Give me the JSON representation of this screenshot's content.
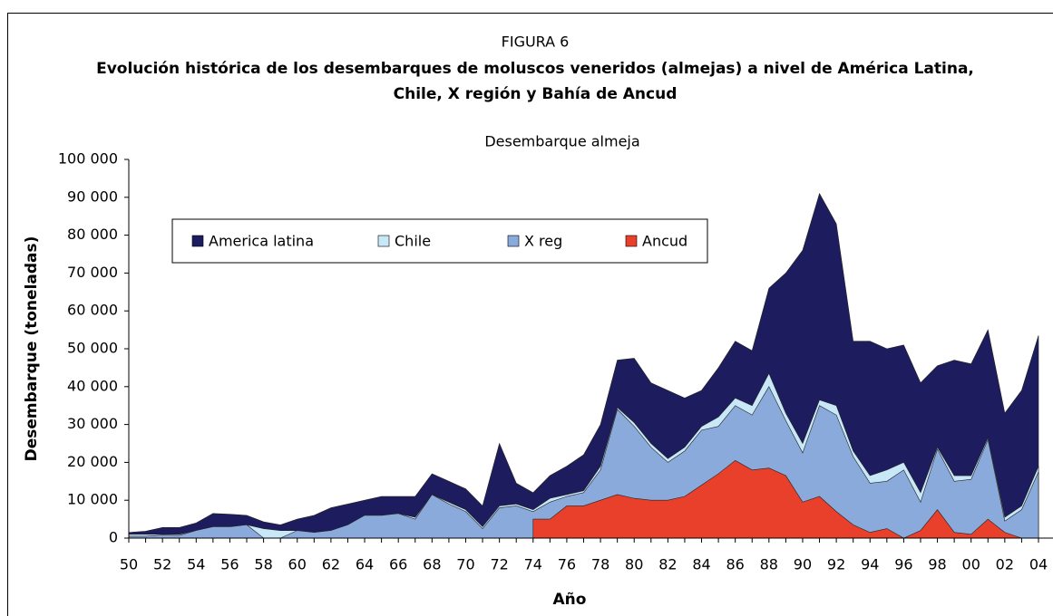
{
  "chart_data": {
    "type": "area",
    "figure_label": "FIGURA 6",
    "title": [
      "Evolución histórica de los desembarques de moluscos veneridos (almejas) a nivel de América Latina,",
      "Chile, X región y Bahía de Ancud"
    ],
    "subtitle": "Desembarque almeja",
    "x_label": "Año",
    "y_label": "Desembarque (toneladas)",
    "categories": [
      "50",
      null,
      "52",
      null,
      "54",
      null,
      "56",
      null,
      "58",
      null,
      "60",
      null,
      "62",
      null,
      "64",
      null,
      "66",
      null,
      "68",
      null,
      "70",
      null,
      "72",
      null,
      "74",
      null,
      "76",
      null,
      "78",
      null,
      "80",
      null,
      "82",
      null,
      "84",
      null,
      "86",
      null,
      "88",
      null,
      "90",
      null,
      "92",
      null,
      "94",
      null,
      "96",
      null,
      "98",
      null,
      "00",
      null,
      "02",
      null,
      "04"
    ],
    "ylim": [
      0,
      100000
    ],
    "yticks": [
      {
        "value": 0,
        "label": "0"
      },
      {
        "value": 10000,
        "label": "10 000"
      },
      {
        "value": 20000,
        "label": "20 000"
      },
      {
        "value": 30000,
        "label": "30 000"
      },
      {
        "value": 40000,
        "label": "40 000"
      },
      {
        "value": 50000,
        "label": "50 000"
      },
      {
        "value": 60000,
        "label": "60 000"
      },
      {
        "value": 70000,
        "label": "70 000"
      },
      {
        "value": 80000,
        "label": "80 000"
      },
      {
        "value": 90000,
        "label": "90 000"
      },
      {
        "value": 100000,
        "label": "100 000"
      }
    ],
    "grid": false,
    "legend": "top-left",
    "series": [
      {
        "name": "America latina",
        "color": "#1c1c5e",
        "values": [
          1500,
          1800,
          2800,
          2800,
          4000,
          6500,
          6300,
          6000,
          4300,
          3500,
          5000,
          6000,
          8000,
          9000,
          10000,
          11000,
          11000,
          11000,
          17000,
          15000,
          13000,
          8500,
          25000,
          14500,
          12000,
          16500,
          19000,
          22000,
          30000,
          47000,
          47500,
          41000,
          39000,
          37000,
          39000,
          45000,
          52000,
          49500,
          66000,
          70000,
          76000,
          91000,
          83000,
          52000,
          52000,
          50000,
          51000,
          41000,
          45500,
          47000,
          46000,
          55000,
          33000,
          39000,
          53500
        ]
      },
      {
        "name": "Chile",
        "color": "#c8e8f8",
        "values": [
          1000,
          1000,
          1000,
          1000,
          2000,
          3000,
          3000,
          3500,
          2500,
          2000,
          2000,
          1500,
          2000,
          3500,
          6000,
          6000,
          6500,
          5500,
          11500,
          9500,
          7500,
          3000,
          8500,
          9000,
          7500,
          10500,
          11500,
          12500,
          19000,
          34500,
          30500,
          25000,
          21000,
          24000,
          29500,
          32000,
          37000,
          35000,
          43500,
          33000,
          25000,
          36500,
          35000,
          23000,
          16500,
          18000,
          20000,
          12000,
          24000,
          16500,
          16500,
          26500,
          5500,
          8500,
          19000
        ]
      },
      {
        "name": "X reg",
        "color": "#8aaadb",
        "values": [
          500,
          500,
          800,
          700,
          2000,
          3000,
          3000,
          3500,
          0,
          0,
          2000,
          1500,
          2000,
          3500,
          6000,
          6000,
          6500,
          5000,
          11500,
          9000,
          7000,
          2500,
          8000,
          8500,
          7000,
          9500,
          11000,
          12000,
          18000,
          34000,
          29500,
          24000,
          20000,
          23000,
          28500,
          29500,
          35000,
          32500,
          40000,
          31000,
          22500,
          35000,
          32500,
          21500,
          14500,
          15000,
          18000,
          9500,
          23500,
          15000,
          15500,
          26000,
          4500,
          7500,
          17500
        ]
      },
      {
        "name": "Ancud",
        "color": "#e8402a",
        "values": [
          null,
          null,
          null,
          null,
          null,
          null,
          null,
          null,
          null,
          null,
          null,
          null,
          null,
          null,
          null,
          null,
          null,
          null,
          null,
          null,
          null,
          null,
          null,
          null,
          5000,
          5000,
          8500,
          8500,
          10000,
          11500,
          10500,
          10000,
          10000,
          11000,
          14000,
          17000,
          20500,
          18000,
          18500,
          16500,
          9500,
          11000,
          7000,
          3500,
          1500,
          2500,
          0,
          2000,
          7500,
          1500,
          1000,
          5000,
          1500,
          0,
          null
        ]
      }
    ]
  }
}
